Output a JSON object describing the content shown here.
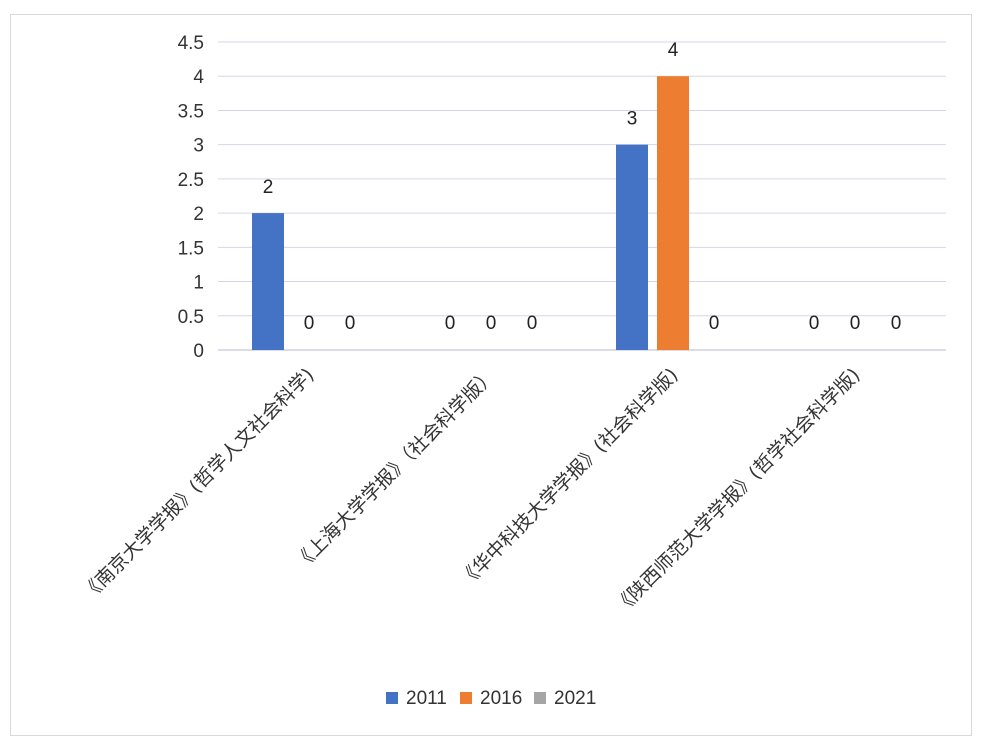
{
  "chart_data": {
    "type": "bar",
    "categories": [
      "《南京大学学报》(哲学人文社会科学)",
      "《上海大学学报》（社会科学版）",
      "《华中科技大学学报》(社会科学版)",
      "《陕西师范大学学报》(哲学社会科学版)"
    ],
    "series": [
      {
        "name": "2011",
        "values": [
          2,
          0,
          3,
          0
        ],
        "color": "#4472c4"
      },
      {
        "name": "2016",
        "values": [
          0,
          0,
          4,
          0
        ],
        "color": "#ed7d31"
      },
      {
        "name": "2021",
        "values": [
          0,
          0,
          0,
          0
        ],
        "color": "#a5a5a5"
      }
    ],
    "yticks": [
      "0",
      "0.5",
      "1",
      "1.5",
      "2",
      "2.5",
      "3",
      "3.5",
      "4",
      "4.5"
    ],
    "ylim": [
      0,
      4.5
    ],
    "grid": true,
    "legend_position": "bottom",
    "data_labels": true
  }
}
